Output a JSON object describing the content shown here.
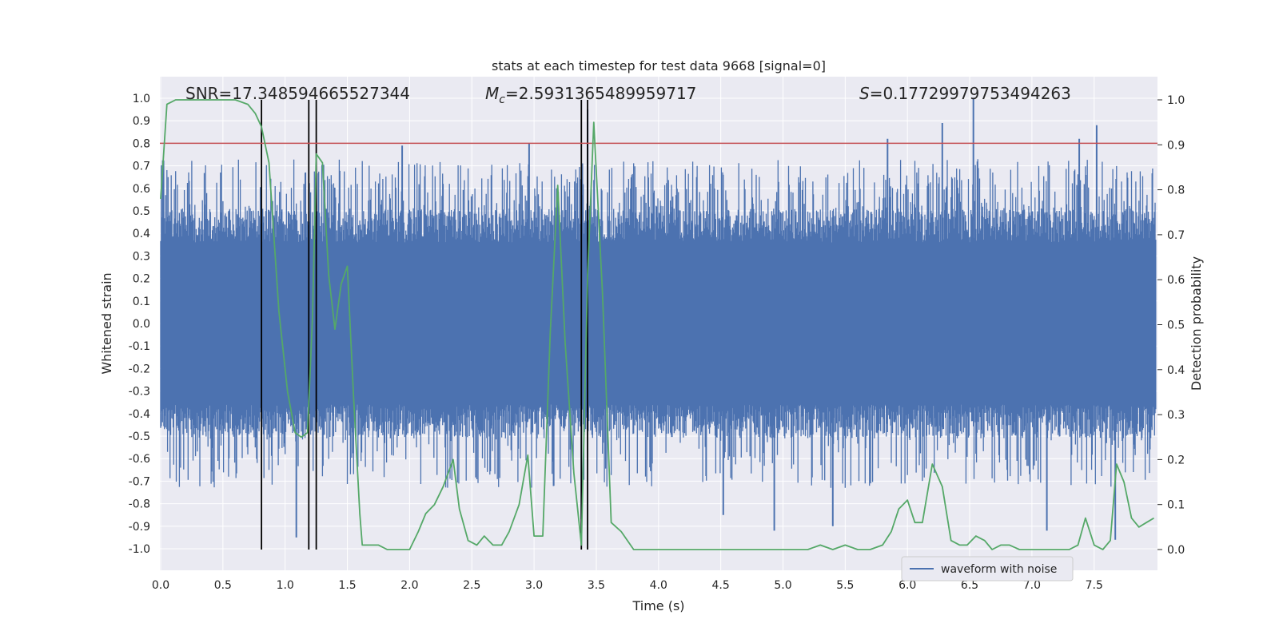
{
  "chart_data": {
    "type": "line",
    "title": "stats at each timestep for test data 9668 [signal=0]",
    "xlabel": "Time (s)",
    "ylabel_left": "Whitened strain",
    "ylabel_right": "Detection probability",
    "xlim": [
      0.0,
      8.0
    ],
    "ylim_left": [
      -1.05,
      1.05
    ],
    "ylim_right": [
      -0.05,
      1.05
    ],
    "x_ticks": [
      "0.0",
      "0.5",
      "1.0",
      "1.5",
      "2.0",
      "2.5",
      "3.0",
      "3.5",
      "4.0",
      "4.5",
      "5.0",
      "5.5",
      "6.0",
      "6.5",
      "7.0",
      "7.5"
    ],
    "y_ticks_left": [
      "1.0",
      "0.9",
      "0.8",
      "0.7",
      "0.6",
      "0.5",
      "0.4",
      "0.3",
      "0.2",
      "0.1",
      "0.0",
      "-0.1",
      "-0.2",
      "-0.3",
      "-0.4",
      "-0.5",
      "-0.6",
      "-0.7",
      "-0.8",
      "-0.9",
      "-1.0"
    ],
    "y_ticks_right": [
      "1.0",
      "0.9",
      "0.8",
      "0.7",
      "0.6",
      "0.5",
      "0.4",
      "0.3",
      "0.2",
      "0.1",
      "0.0"
    ],
    "grid": true,
    "legend_position": "lower-right",
    "annotations": {
      "snr": "SNR=17.348594665527344",
      "mc_symbol": "M",
      "mc_sub": "c",
      "mc_value": "=2.5931365489959717",
      "s_symbol": "S",
      "s_value": "=0.17729979753494263"
    },
    "threshold": {
      "y": 0.8,
      "color": "#c44e52"
    },
    "vlines": [
      0.81,
      1.19,
      1.25,
      3.38,
      3.43
    ],
    "series": [
      {
        "name": "waveform with noise",
        "axis": "left",
        "color": "#4c72b0",
        "envelope": {
          "core": 0.36,
          "dense": 0.6,
          "low_peaks": [
            -0.95,
            -0.85,
            -0.93,
            -0.92,
            -0.96
          ],
          "high_peaks": [
            1.0,
            0.89,
            0.82,
            0.8,
            0.79
          ]
        }
      },
      {
        "axis": "right",
        "color": "#55a868",
        "x": [
          0.0,
          0.05,
          0.12,
          0.2,
          0.3,
          0.4,
          0.5,
          0.6,
          0.7,
          0.76,
          0.81,
          0.87,
          0.95,
          1.02,
          1.08,
          1.13,
          1.18,
          1.22,
          1.25,
          1.3,
          1.35,
          1.4,
          1.45,
          1.5,
          1.55,
          1.6,
          1.62,
          1.68,
          1.75,
          1.82,
          1.9,
          2.0,
          2.07,
          2.13,
          2.2,
          2.27,
          2.35,
          2.4,
          2.47,
          2.54,
          2.6,
          2.67,
          2.74,
          2.8,
          2.88,
          2.95,
          3.0,
          3.07,
          3.13,
          3.19,
          3.25,
          3.32,
          3.38,
          3.43,
          3.48,
          3.55,
          3.62,
          3.7,
          3.8,
          3.9,
          4.0,
          4.1,
          4.2,
          4.3,
          4.4,
          4.5,
          4.6,
          4.7,
          4.8,
          4.9,
          5.0,
          5.1,
          5.2,
          5.3,
          5.4,
          5.5,
          5.6,
          5.7,
          5.8,
          5.87,
          5.93,
          6.0,
          6.06,
          6.12,
          6.2,
          6.28,
          6.35,
          6.42,
          6.48,
          6.55,
          6.62,
          6.68,
          6.75,
          6.82,
          6.9,
          7.0,
          7.1,
          7.2,
          7.3,
          7.37,
          7.43,
          7.5,
          7.57,
          7.63,
          7.68,
          7.74,
          7.8,
          7.86,
          7.92,
          7.98
        ],
        "y": [
          0.78,
          0.99,
          1.0,
          1.0,
          1.0,
          1.0,
          1.0,
          1.0,
          0.99,
          0.97,
          0.94,
          0.86,
          0.53,
          0.35,
          0.26,
          0.25,
          0.26,
          0.52,
          0.88,
          0.86,
          0.61,
          0.49,
          0.59,
          0.63,
          0.34,
          0.08,
          0.01,
          0.01,
          0.01,
          0.0,
          0.0,
          0.0,
          0.04,
          0.08,
          0.1,
          0.14,
          0.2,
          0.09,
          0.02,
          0.01,
          0.03,
          0.01,
          0.01,
          0.04,
          0.1,
          0.21,
          0.03,
          0.03,
          0.48,
          0.81,
          0.46,
          0.17,
          0.01,
          0.61,
          0.95,
          0.57,
          0.06,
          0.04,
          0.0,
          0.0,
          0.0,
          0.0,
          0.0,
          0.0,
          0.0,
          0.0,
          0.0,
          0.0,
          0.0,
          0.0,
          0.0,
          0.0,
          0.0,
          0.01,
          0.0,
          0.01,
          0.0,
          0.0,
          0.01,
          0.04,
          0.09,
          0.11,
          0.06,
          0.06,
          0.19,
          0.14,
          0.02,
          0.01,
          0.01,
          0.03,
          0.02,
          0.0,
          0.01,
          0.01,
          0.0,
          0.0,
          0.0,
          0.0,
          0.0,
          0.01,
          0.07,
          0.01,
          0.0,
          0.02,
          0.19,
          0.15,
          0.07,
          0.05,
          0.06,
          0.07
        ]
      }
    ]
  }
}
